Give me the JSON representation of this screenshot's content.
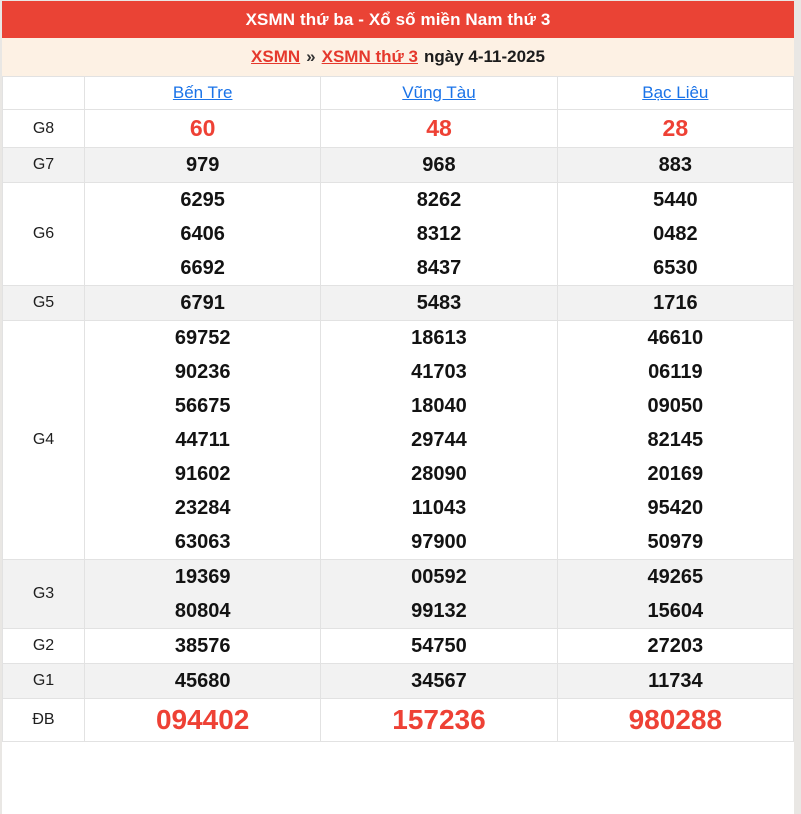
{
  "header": {
    "title": "XSMN thứ ba - Xổ số miền Nam thứ 3"
  },
  "breadcrumb": {
    "link_region": "XSMN",
    "separator": "»",
    "link_day": "XSMN thứ 3",
    "date_text": "ngày 4-11-2025"
  },
  "table": {
    "columns": [
      "Bến Tre",
      "Vũng Tàu",
      "Bạc Liêu"
    ],
    "rows": [
      {
        "label": "G8",
        "style": "red-medium",
        "cells": [
          [
            "60"
          ],
          [
            "48"
          ],
          [
            "28"
          ]
        ]
      },
      {
        "label": "G7",
        "style": "",
        "cells": [
          [
            "979"
          ],
          [
            "968"
          ],
          [
            "883"
          ]
        ]
      },
      {
        "label": "G6",
        "style": "",
        "cells": [
          [
            "6295",
            "6406",
            "6692"
          ],
          [
            "8262",
            "8312",
            "8437"
          ],
          [
            "5440",
            "0482",
            "6530"
          ]
        ]
      },
      {
        "label": "G5",
        "style": "",
        "cells": [
          [
            "6791"
          ],
          [
            "5483"
          ],
          [
            "1716"
          ]
        ]
      },
      {
        "label": "G4",
        "style": "",
        "cells": [
          [
            "69752",
            "90236",
            "56675",
            "44711",
            "91602",
            "23284",
            "63063"
          ],
          [
            "18613",
            "41703",
            "18040",
            "29744",
            "28090",
            "11043",
            "97900"
          ],
          [
            "46610",
            "06119",
            "09050",
            "82145",
            "20169",
            "95420",
            "50979"
          ]
        ]
      },
      {
        "label": "G3",
        "style": "",
        "cells": [
          [
            "19369",
            "80804"
          ],
          [
            "00592",
            "99132"
          ],
          [
            "49265",
            "15604"
          ]
        ]
      },
      {
        "label": "G2",
        "style": "",
        "cells": [
          [
            "38576"
          ],
          [
            "54750"
          ],
          [
            "27203"
          ]
        ]
      },
      {
        "label": "G1",
        "style": "",
        "cells": [
          [
            "45680"
          ],
          [
            "34567"
          ],
          [
            "11734"
          ]
        ]
      },
      {
        "label": "ĐB",
        "style": "red-large",
        "cells": [
          [
            "094402"
          ],
          [
            "157236"
          ],
          [
            "980288"
          ]
        ]
      }
    ]
  },
  "colors": {
    "header_bg": "#ea4335",
    "breadcrumb_bg": "#fdf1e4",
    "breadcrumb_link_red": "#e5382c",
    "column_link_blue": "#1a73e8",
    "prize_number_red": "#ee4135",
    "row_stripe_gray": "#f2f2f2"
  }
}
